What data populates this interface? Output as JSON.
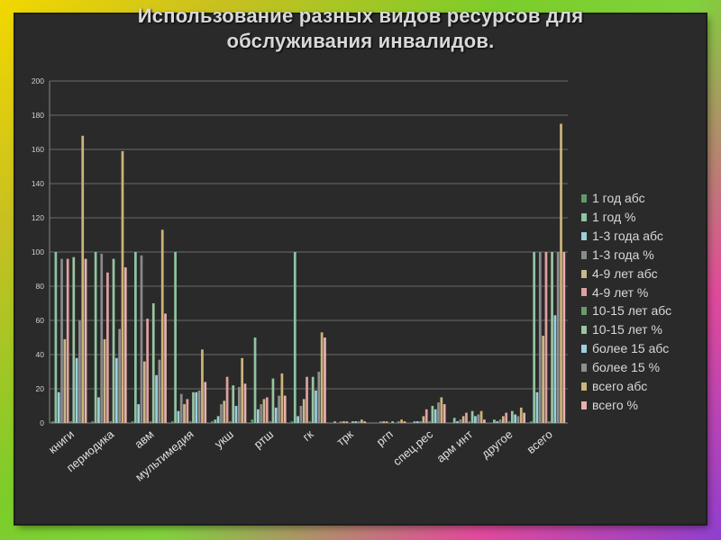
{
  "chart_data": {
    "type": "bar",
    "title": "Использование разных видов ресурсов для обслуживания инвалидов.",
    "ylim": [
      0,
      200
    ],
    "yticks": [
      "0",
      "20",
      "40",
      "60",
      "80",
      "100",
      "120",
      "140",
      "160",
      "180",
      "200"
    ],
    "grid": true,
    "legend_position": "right",
    "categories": [
      "книги",
      "периодика",
      "авм",
      "мультимедия",
      "укш",
      "ртш",
      "гк",
      "трк",
      "ргп",
      "спец.рес",
      "арм инт",
      "другое",
      "всего"
    ],
    "series": [
      {
        "name": "1 год абс",
        "color": "#5e9a6a",
        "values": [
          1,
          1,
          1,
          1,
          1,
          2,
          1,
          0,
          0,
          0,
          0,
          0,
          1
        ]
      },
      {
        "name": "1 год %",
        "color": "#8ec4a0",
        "values": [
          100,
          100,
          100,
          100,
          2,
          50,
          100,
          1,
          0,
          1,
          3,
          2,
          100
        ]
      },
      {
        "name": "1-3 года абс",
        "color": "#9ccfd8",
        "values": [
          18,
          15,
          11,
          7,
          4,
          8,
          4,
          0,
          0,
          1,
          1,
          1,
          18
        ]
      },
      {
        "name": "1-3 года %",
        "color": "#8a8a8a",
        "values": [
          96,
          99,
          98,
          17,
          11,
          11,
          10,
          1,
          1,
          1,
          2,
          2,
          100
        ]
      },
      {
        "name": "4-9 лет абс",
        "color": "#c8b88a",
        "values": [
          49,
          49,
          36,
          11,
          13,
          14,
          14,
          1,
          1,
          4,
          4,
          4,
          51
        ]
      },
      {
        "name": "4-9 лет %",
        "color": "#e0a0a0",
        "values": [
          96,
          88,
          61,
          14,
          27,
          15,
          27,
          1,
          1,
          8,
          6,
          6,
          100
        ]
      },
      {
        "name": "10-15 лет абс",
        "color": "#6a9a6a",
        "values": [
          1,
          1,
          1,
          1,
          1,
          1,
          1,
          0,
          0,
          1,
          1,
          1,
          1
        ]
      },
      {
        "name": "10-15 лет %",
        "color": "#9ac4a0",
        "values": [
          97,
          96,
          70,
          18,
          22,
          26,
          27,
          1,
          1,
          10,
          7,
          7,
          100
        ]
      },
      {
        "name": "более 15 абс",
        "color": "#9ccfe0",
        "values": [
          38,
          38,
          28,
          18,
          10,
          9,
          19,
          1,
          0,
          8,
          4,
          5,
          63
        ]
      },
      {
        "name": "более 15 %",
        "color": "#8f8f8f",
        "values": [
          60,
          55,
          37,
          19,
          21,
          16,
          30,
          1,
          1,
          12,
          5,
          4,
          100
        ]
      },
      {
        "name": "всего абс",
        "color": "#cdb47a",
        "values": [
          168,
          159,
          113,
          43,
          38,
          29,
          53,
          2,
          2,
          15,
          7,
          9,
          175
        ]
      },
      {
        "name": "всего %",
        "color": "#e8b0ae",
        "values": [
          96,
          91,
          64,
          24,
          23,
          16,
          50,
          1,
          1,
          11,
          2,
          6,
          100
        ]
      }
    ]
  }
}
